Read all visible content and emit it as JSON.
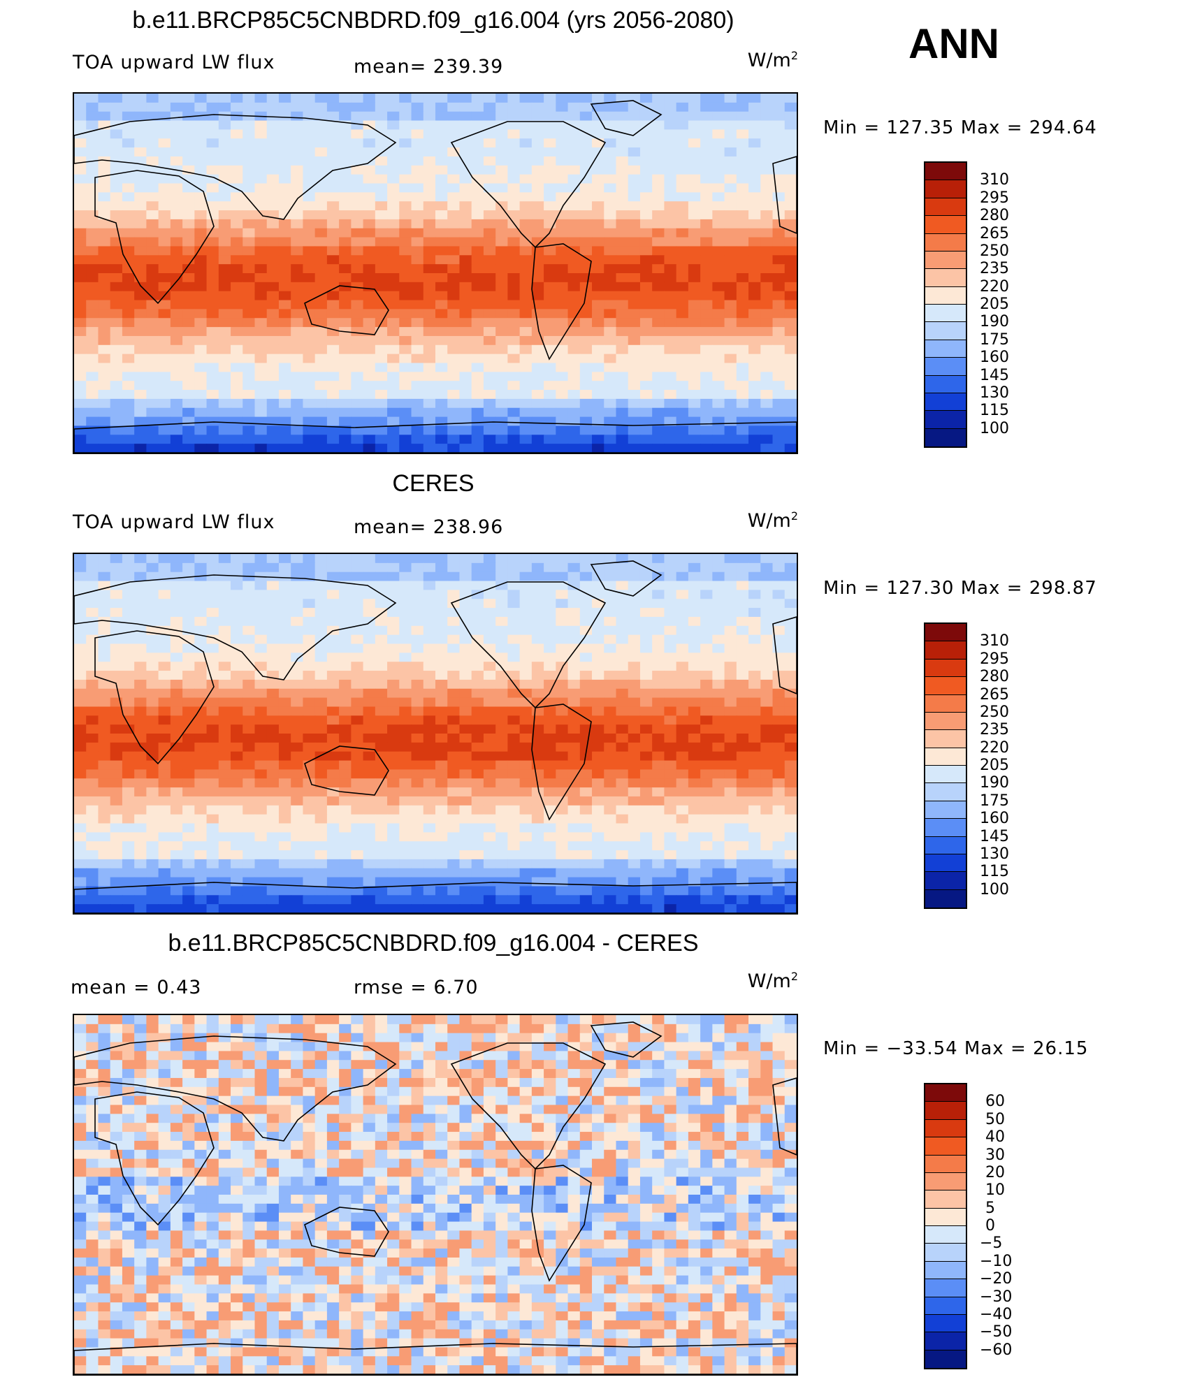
{
  "season": "ANN",
  "panels": [
    {
      "title": "b.e11.BRCP85C5CNBDRD.f09_g16.004 (yrs 2056-2080)",
      "variable": "TOA upward LW flux",
      "stat": "mean=  239.39",
      "units": "W/m",
      "units_sup": "2",
      "minmax": "Min  =  127.35  Max  =  294.64",
      "colorbar": {
        "labels": [
          "310",
          "295",
          "280",
          "265",
          "250",
          "235",
          "220",
          "205",
          "190",
          "175",
          "160",
          "145",
          "130",
          "115",
          "100"
        ],
        "colors": [
          "#7d0a0a",
          "#b82008",
          "#d93a10",
          "#f05a22",
          "#f47b49",
          "#f89c74",
          "#fcc4a6",
          "#fde8d6",
          "#d6e8fa",
          "#b8d3fb",
          "#8fb6fb",
          "#5b8ef6",
          "#2e66ea",
          "#1240d6",
          "#0b24a8",
          "#061883"
        ]
      },
      "map_style": "absolute"
    },
    {
      "title": "CERES",
      "variable": "TOA upward LW flux",
      "stat": "mean=  238.96",
      "units": "W/m",
      "units_sup": "2",
      "minmax": "Min  =  127.30  Max  =  298.87",
      "colorbar": {
        "labels": [
          "310",
          "295",
          "280",
          "265",
          "250",
          "235",
          "220",
          "205",
          "190",
          "175",
          "160",
          "145",
          "130",
          "115",
          "100"
        ],
        "colors": [
          "#7d0a0a",
          "#b82008",
          "#d93a10",
          "#f05a22",
          "#f47b49",
          "#f89c74",
          "#fcc4a6",
          "#fde8d6",
          "#d6e8fa",
          "#b8d3fb",
          "#8fb6fb",
          "#5b8ef6",
          "#2e66ea",
          "#1240d6",
          "#0b24a8",
          "#061883"
        ]
      },
      "map_style": "absolute"
    },
    {
      "title": "b.e11.BRCP85C5CNBDRD.f09_g16.004 - CERES",
      "variable": "mean  =      0.43",
      "stat": "rmse  =      6.70",
      "units": "W/m",
      "units_sup": "2",
      "minmax": "Min  =  −33.54  Max  =    26.15",
      "colorbar": {
        "labels": [
          "60",
          "50",
          "40",
          "30",
          "20",
          "10",
          "5",
          "0",
          "−5",
          "−10",
          "−20",
          "−30",
          "−40",
          "−50",
          "−60"
        ],
        "colors": [
          "#7d0a0a",
          "#b82008",
          "#d93a10",
          "#f05a22",
          "#f47b49",
          "#f89c74",
          "#fcc4a6",
          "#fde8d6",
          "#d6e8fa",
          "#b8d3fb",
          "#8fb6fb",
          "#5b8ef6",
          "#2e66ea",
          "#1240d6",
          "#0b24a8",
          "#061883"
        ]
      },
      "map_style": "difference"
    }
  ]
}
